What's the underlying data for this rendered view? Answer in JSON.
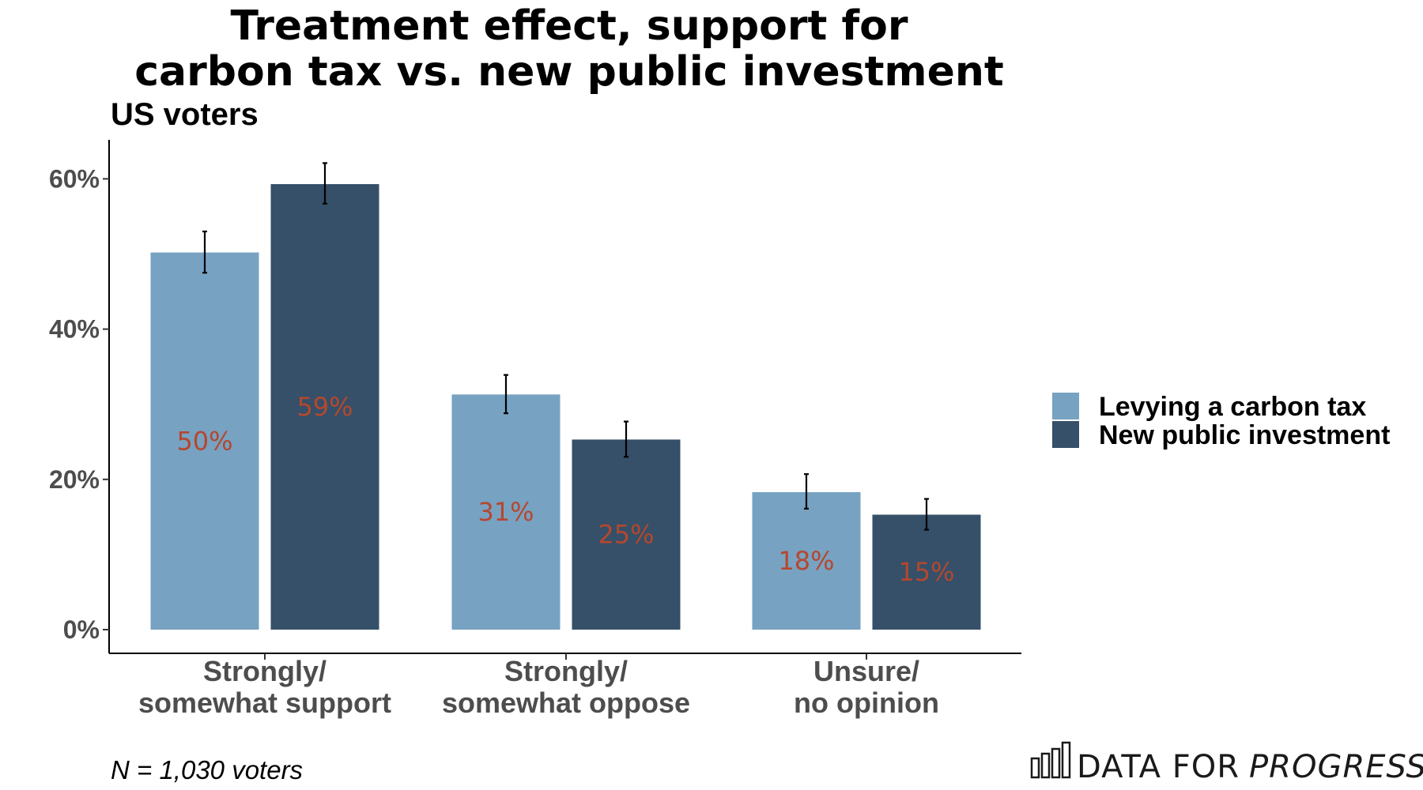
{
  "chart_data": {
    "type": "bar",
    "title_lines": [
      "Treatment effect, support for",
      "carbon tax vs. new public investment"
    ],
    "subtitle": "US voters",
    "categories": [
      [
        "Strongly/",
        "somewhat support"
      ],
      [
        "Strongly/",
        "somewhat oppose"
      ],
      [
        "Unsure/",
        "no opinion"
      ]
    ],
    "series": [
      {
        "name": "Levying a carbon tax",
        "color": "#77a2c2",
        "values": [
          50.2,
          31.3,
          18.3
        ],
        "labels": [
          "50%",
          "31%",
          "18%"
        ],
        "error_low": [
          47.5,
          28.8,
          16.1
        ],
        "error_high": [
          53.0,
          33.9,
          20.7
        ]
      },
      {
        "name": "New public investment",
        "color": "#355068",
        "values": [
          59.3,
          25.3,
          15.3
        ],
        "labels": [
          "59%",
          "25%",
          "15%"
        ],
        "error_low": [
          56.7,
          23.0,
          13.3
        ],
        "error_high": [
          62.1,
          27.7,
          17.4
        ]
      }
    ],
    "ylim": [
      -3,
      65
    ],
    "yticks": [
      0,
      20,
      40,
      60
    ],
    "ytick_labels": [
      "0%",
      "20%",
      "40%",
      "60%"
    ],
    "xlabel": "",
    "ylabel": "",
    "grid": false,
    "legend_position": "right",
    "label_color": "#b5472e"
  },
  "caption": "N = 1,030 voters",
  "brand": {
    "light": "DATA FOR",
    "bold": "PROGRESS"
  }
}
